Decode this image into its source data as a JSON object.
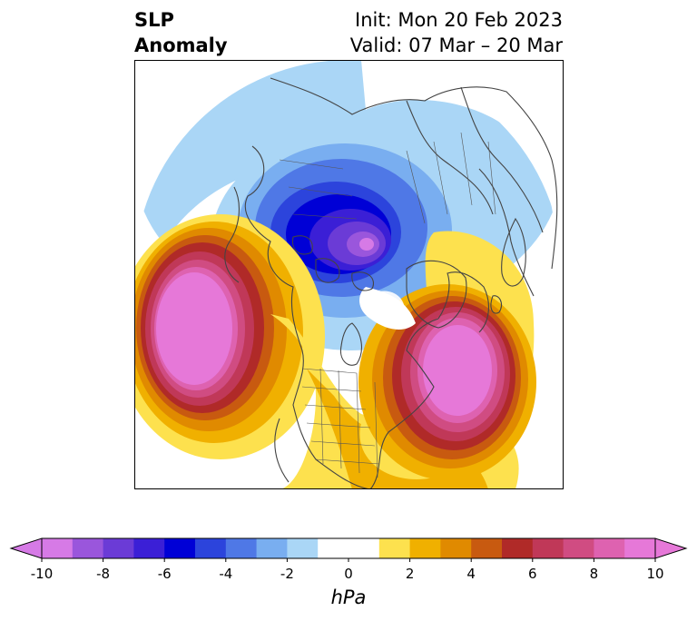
{
  "title": {
    "left_line1": "SLP",
    "left_line2": "Anomaly",
    "right_line1": "Init: Mon 20 Feb 2023",
    "right_line2": "Valid: 07 Mar – 20 Mar"
  },
  "colorbar": {
    "units": "hPa",
    "tick_labels": [
      "-10",
      "-8",
      "-6",
      "-4",
      "-2",
      "0",
      "2",
      "4",
      "6",
      "8",
      "10"
    ],
    "colors": [
      "#d67ae6",
      "#9a56dc",
      "#6b3bd6",
      "#3b1fd6",
      "#0000d6",
      "#2c44dc",
      "#4f78e6",
      "#79aef0",
      "#aad6f6",
      "#ffffff",
      "#ffffff",
      "#fde14e",
      "#f0b000",
      "#e08a00",
      "#c85a10",
      "#b02a28",
      "#c03858",
      "#d04c82",
      "#de62b0",
      "#e678d8"
    ]
  },
  "chart_data": {
    "type": "heatmap",
    "title": "SLP Anomaly",
    "units": "hPa",
    "init": "Mon 20 Feb 2023",
    "valid": "07 Mar – 20 Mar",
    "levels": [
      -10,
      -9,
      -8,
      -7,
      -6,
      -5,
      -4,
      -3,
      -2,
      -1,
      0,
      1,
      2,
      3,
      4,
      5,
      6,
      7,
      8,
      9,
      10
    ],
    "features": [
      {
        "name": "negative anomaly centered over Arctic / northern Canada",
        "peak_hPa": -10
      },
      {
        "name": "positive anomaly over northeastern Pacific",
        "peak_hPa": 10
      },
      {
        "name": "positive anomaly over western North Atlantic",
        "peak_hPa": 10
      },
      {
        "name": "weak negative anomaly over Bering Sea / Alaska rim",
        "peak_hPa": -2
      }
    ]
  }
}
